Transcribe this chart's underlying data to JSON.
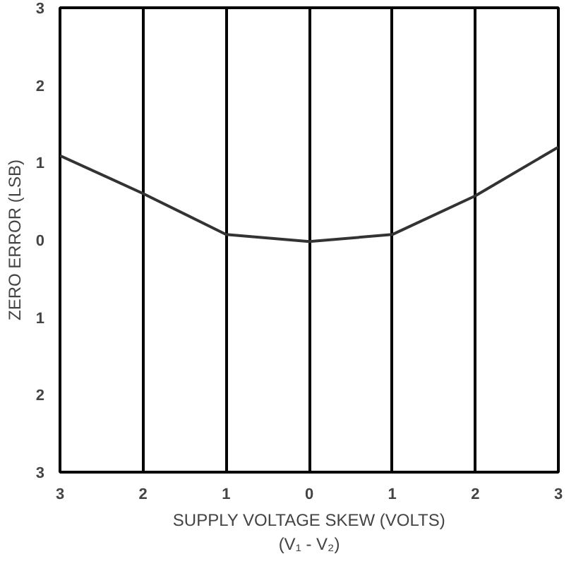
{
  "chart_data": {
    "type": "line",
    "xlabel": "SUPPLY VOLTAGE SKEW (VOLTS)\n(V₁ - V₂)",
    "ylabel": "ZERO ERROR (LSB)",
    "x": [
      -3,
      -2,
      -1,
      0,
      1,
      2,
      3
    ],
    "series": [
      {
        "color": "#333333",
        "values": [
          1.09,
          0.6,
          0.07,
          -0.02,
          0.07,
          0.57,
          1.2
        ]
      }
    ],
    "xlim": [
      -3,
      3
    ],
    "ylim": [
      -3,
      3
    ],
    "xticks": [
      {
        "value": -3,
        "label": "3"
      },
      {
        "value": -2,
        "label": "2"
      },
      {
        "value": -1,
        "label": "1"
      },
      0,
      1,
      2,
      3
    ],
    "yticks": [
      {
        "value": -3,
        "label": "3"
      },
      {
        "value": -2,
        "label": "2"
      },
      {
        "value": -1,
        "label": "1"
      },
      0,
      1,
      2,
      3
    ],
    "grid": "x",
    "marker": "none",
    "line_style": "solid"
  }
}
